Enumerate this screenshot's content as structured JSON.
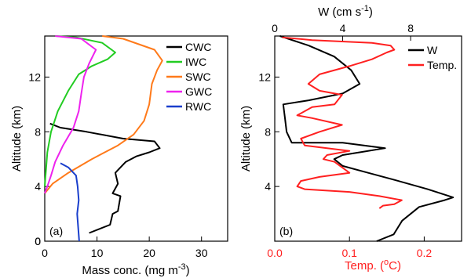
{
  "colors": {
    "CWC": "#000000",
    "IWC": "#22cc22",
    "SWC": "#ff7a1a",
    "GWC": "#ee22ee",
    "RWC": "#1a3fcc",
    "W": "#000000",
    "Temp": "#ff2020",
    "axis_red": "#ff2020"
  },
  "chart_data": [
    {
      "type": "line",
      "panel_label": "(a)",
      "xlabel": "Mass conc. (mg m",
      "xlabel_sup": "-3",
      "xlabel_end": ")",
      "ylabel": "Altitude (km)",
      "xlim": [
        0,
        35
      ],
      "ylim": [
        0,
        15
      ],
      "xticks": [
        0,
        10,
        20,
        30
      ],
      "yticks": [
        0,
        4,
        8,
        12
      ],
      "legend_position": "top-right",
      "series": [
        {
          "name": "CWC",
          "color_key": "CWC",
          "points": [
            [
              8.5,
              0.6
            ],
            [
              12.5,
              1.2
            ],
            [
              13,
              2
            ],
            [
              14,
              2.2
            ],
            [
              14.5,
              3.3
            ],
            [
              13,
              3.5
            ],
            [
              14,
              4.2
            ],
            [
              13.5,
              5
            ],
            [
              15.5,
              5.8
            ],
            [
              17.5,
              6.2
            ],
            [
              20,
              6.5
            ],
            [
              22,
              6.8
            ],
            [
              21,
              7.3
            ],
            [
              15,
              7.5
            ],
            [
              8,
              8
            ],
            [
              3,
              8.3
            ],
            [
              1,
              8.6
            ]
          ]
        },
        {
          "name": "IWC",
          "color_key": "IWC",
          "points": [
            [
              0,
              4
            ],
            [
              0.2,
              5
            ],
            [
              0.5,
              6.5
            ],
            [
              1.2,
              8
            ],
            [
              2.5,
              9.5
            ],
            [
              4.5,
              11
            ],
            [
              6.5,
              12.2
            ],
            [
              9,
              12.8
            ],
            [
              12,
              13.3
            ],
            [
              13.5,
              13.8
            ],
            [
              11,
              14.5
            ],
            [
              6,
              14.9
            ],
            [
              2,
              15
            ]
          ]
        },
        {
          "name": "SWC",
          "color_key": "SWC",
          "points": [
            [
              0,
              3.5
            ],
            [
              1.5,
              4.2
            ],
            [
              4.5,
              5
            ],
            [
              9,
              6
            ],
            [
              14,
              7
            ],
            [
              17,
              7.8
            ],
            [
              19,
              8.8
            ],
            [
              20,
              10
            ],
            [
              20.5,
              11.5
            ],
            [
              21.5,
              12.5
            ],
            [
              22.5,
              13.2
            ],
            [
              21,
              14
            ],
            [
              15,
              14.8
            ],
            [
              11,
              15
            ]
          ]
        },
        {
          "name": "GWC",
          "color_key": "GWC",
          "points": [
            [
              0,
              3.5
            ],
            [
              0.5,
              4
            ],
            [
              1.2,
              4.8
            ],
            [
              2,
              5.8
            ],
            [
              3.5,
              7
            ],
            [
              5.5,
              8.3
            ],
            [
              6.5,
              9.5
            ],
            [
              7,
              10.8
            ],
            [
              7.5,
              12
            ],
            [
              8.5,
              13
            ],
            [
              9.8,
              14
            ],
            [
              7,
              14.8
            ],
            [
              2,
              15
            ]
          ]
        },
        {
          "name": "RWC",
          "color_key": "RWC",
          "points": [
            [
              3,
              5.7
            ],
            [
              4.5,
              5.4
            ],
            [
              6,
              4.8
            ],
            [
              6.3,
              4
            ],
            [
              6.5,
              3
            ],
            [
              6.2,
              2
            ],
            [
              6.4,
              1
            ],
            [
              6.6,
              0
            ]
          ]
        }
      ]
    },
    {
      "type": "line",
      "panel_label": "(b)",
      "xlabel_bottom": "Temp. (",
      "xlabel_bottom_sup": "o",
      "xlabel_bottom_end": "C)",
      "xlabel_top": "W (cm s",
      "xlabel_top_sup": "-1",
      "xlabel_top_end": ")",
      "ylabel": "Altitude (km)",
      "xlim_bottom": [
        0,
        0.25
      ],
      "xlim_top": [
        0,
        11
      ],
      "xticks_bottom": [
        0.0,
        0.1,
        0.2
      ],
      "xticks_bottom_labels": [
        "0.0",
        "0.1",
        "0.2"
      ],
      "xticks_top": [
        0,
        4,
        8
      ],
      "xticks_top_labels": [
        "0",
        "4",
        "8"
      ],
      "ylim": [
        0,
        15
      ],
      "yticks": [
        4,
        8,
        12
      ],
      "legend_position": "top-right",
      "series": [
        {
          "name": "W",
          "axis": "top",
          "color_key": "W",
          "points": [
            [
              6,
              0
            ],
            [
              7,
              0.5
            ],
            [
              7.5,
              1.5
            ],
            [
              8.5,
              2.5
            ],
            [
              10,
              3
            ],
            [
              10.5,
              3.2
            ],
            [
              9,
              3.8
            ],
            [
              7,
              4.5
            ],
            [
              5.5,
              5
            ],
            [
              4,
              5.5
            ],
            [
              3.5,
              6
            ],
            [
              4,
              6.3
            ],
            [
              5,
              6.5
            ],
            [
              6.5,
              6.8
            ],
            [
              4,
              7.2
            ],
            [
              1,
              7.2
            ],
            [
              0.7,
              8
            ],
            [
              0.6,
              9
            ],
            [
              0.5,
              10
            ],
            [
              2,
              10.3
            ],
            [
              4,
              10.8
            ],
            [
              5,
              11.5
            ],
            [
              4.5,
              12.5
            ],
            [
              3.5,
              13.5
            ],
            [
              2,
              14.3
            ],
            [
              0.3,
              15
            ]
          ]
        },
        {
          "name": "Temp.",
          "axis": "bottom",
          "color_key": "Temp",
          "points": [
            [
              0.14,
              2.4
            ],
            [
              0.145,
              2.6
            ],
            [
              0.16,
              2.7
            ],
            [
              0.17,
              3
            ],
            [
              0.14,
              3.3
            ],
            [
              0.1,
              3.6
            ],
            [
              0.04,
              3.8
            ],
            [
              0.03,
              4
            ],
            [
              0.035,
              4.4
            ],
            [
              0.06,
              4.7
            ],
            [
              0.1,
              5
            ],
            [
              0.09,
              5.4
            ],
            [
              0.08,
              5.8
            ],
            [
              0.065,
              6
            ],
            [
              0.07,
              6.3
            ],
            [
              0.1,
              6.6
            ],
            [
              0.04,
              7
            ],
            [
              0.035,
              7.5
            ],
            [
              0.06,
              8
            ],
            [
              0.09,
              8.5
            ],
            [
              0.05,
              9
            ],
            [
              0.03,
              9.2
            ],
            [
              0.05,
              9.8
            ],
            [
              0.08,
              10
            ],
            [
              0.09,
              10.7
            ],
            [
              0.06,
              11
            ],
            [
              0.045,
              11.5
            ],
            [
              0.06,
              12.2
            ],
            [
              0.1,
              12.8
            ],
            [
              0.13,
              13.3
            ],
            [
              0.15,
              13.8
            ],
            [
              0.16,
              14
            ],
            [
              0.155,
              14.3
            ],
            [
              0.13,
              14.5
            ],
            [
              0.05,
              14.7
            ],
            [
              0.01,
              14.9
            ]
          ]
        }
      ]
    }
  ]
}
